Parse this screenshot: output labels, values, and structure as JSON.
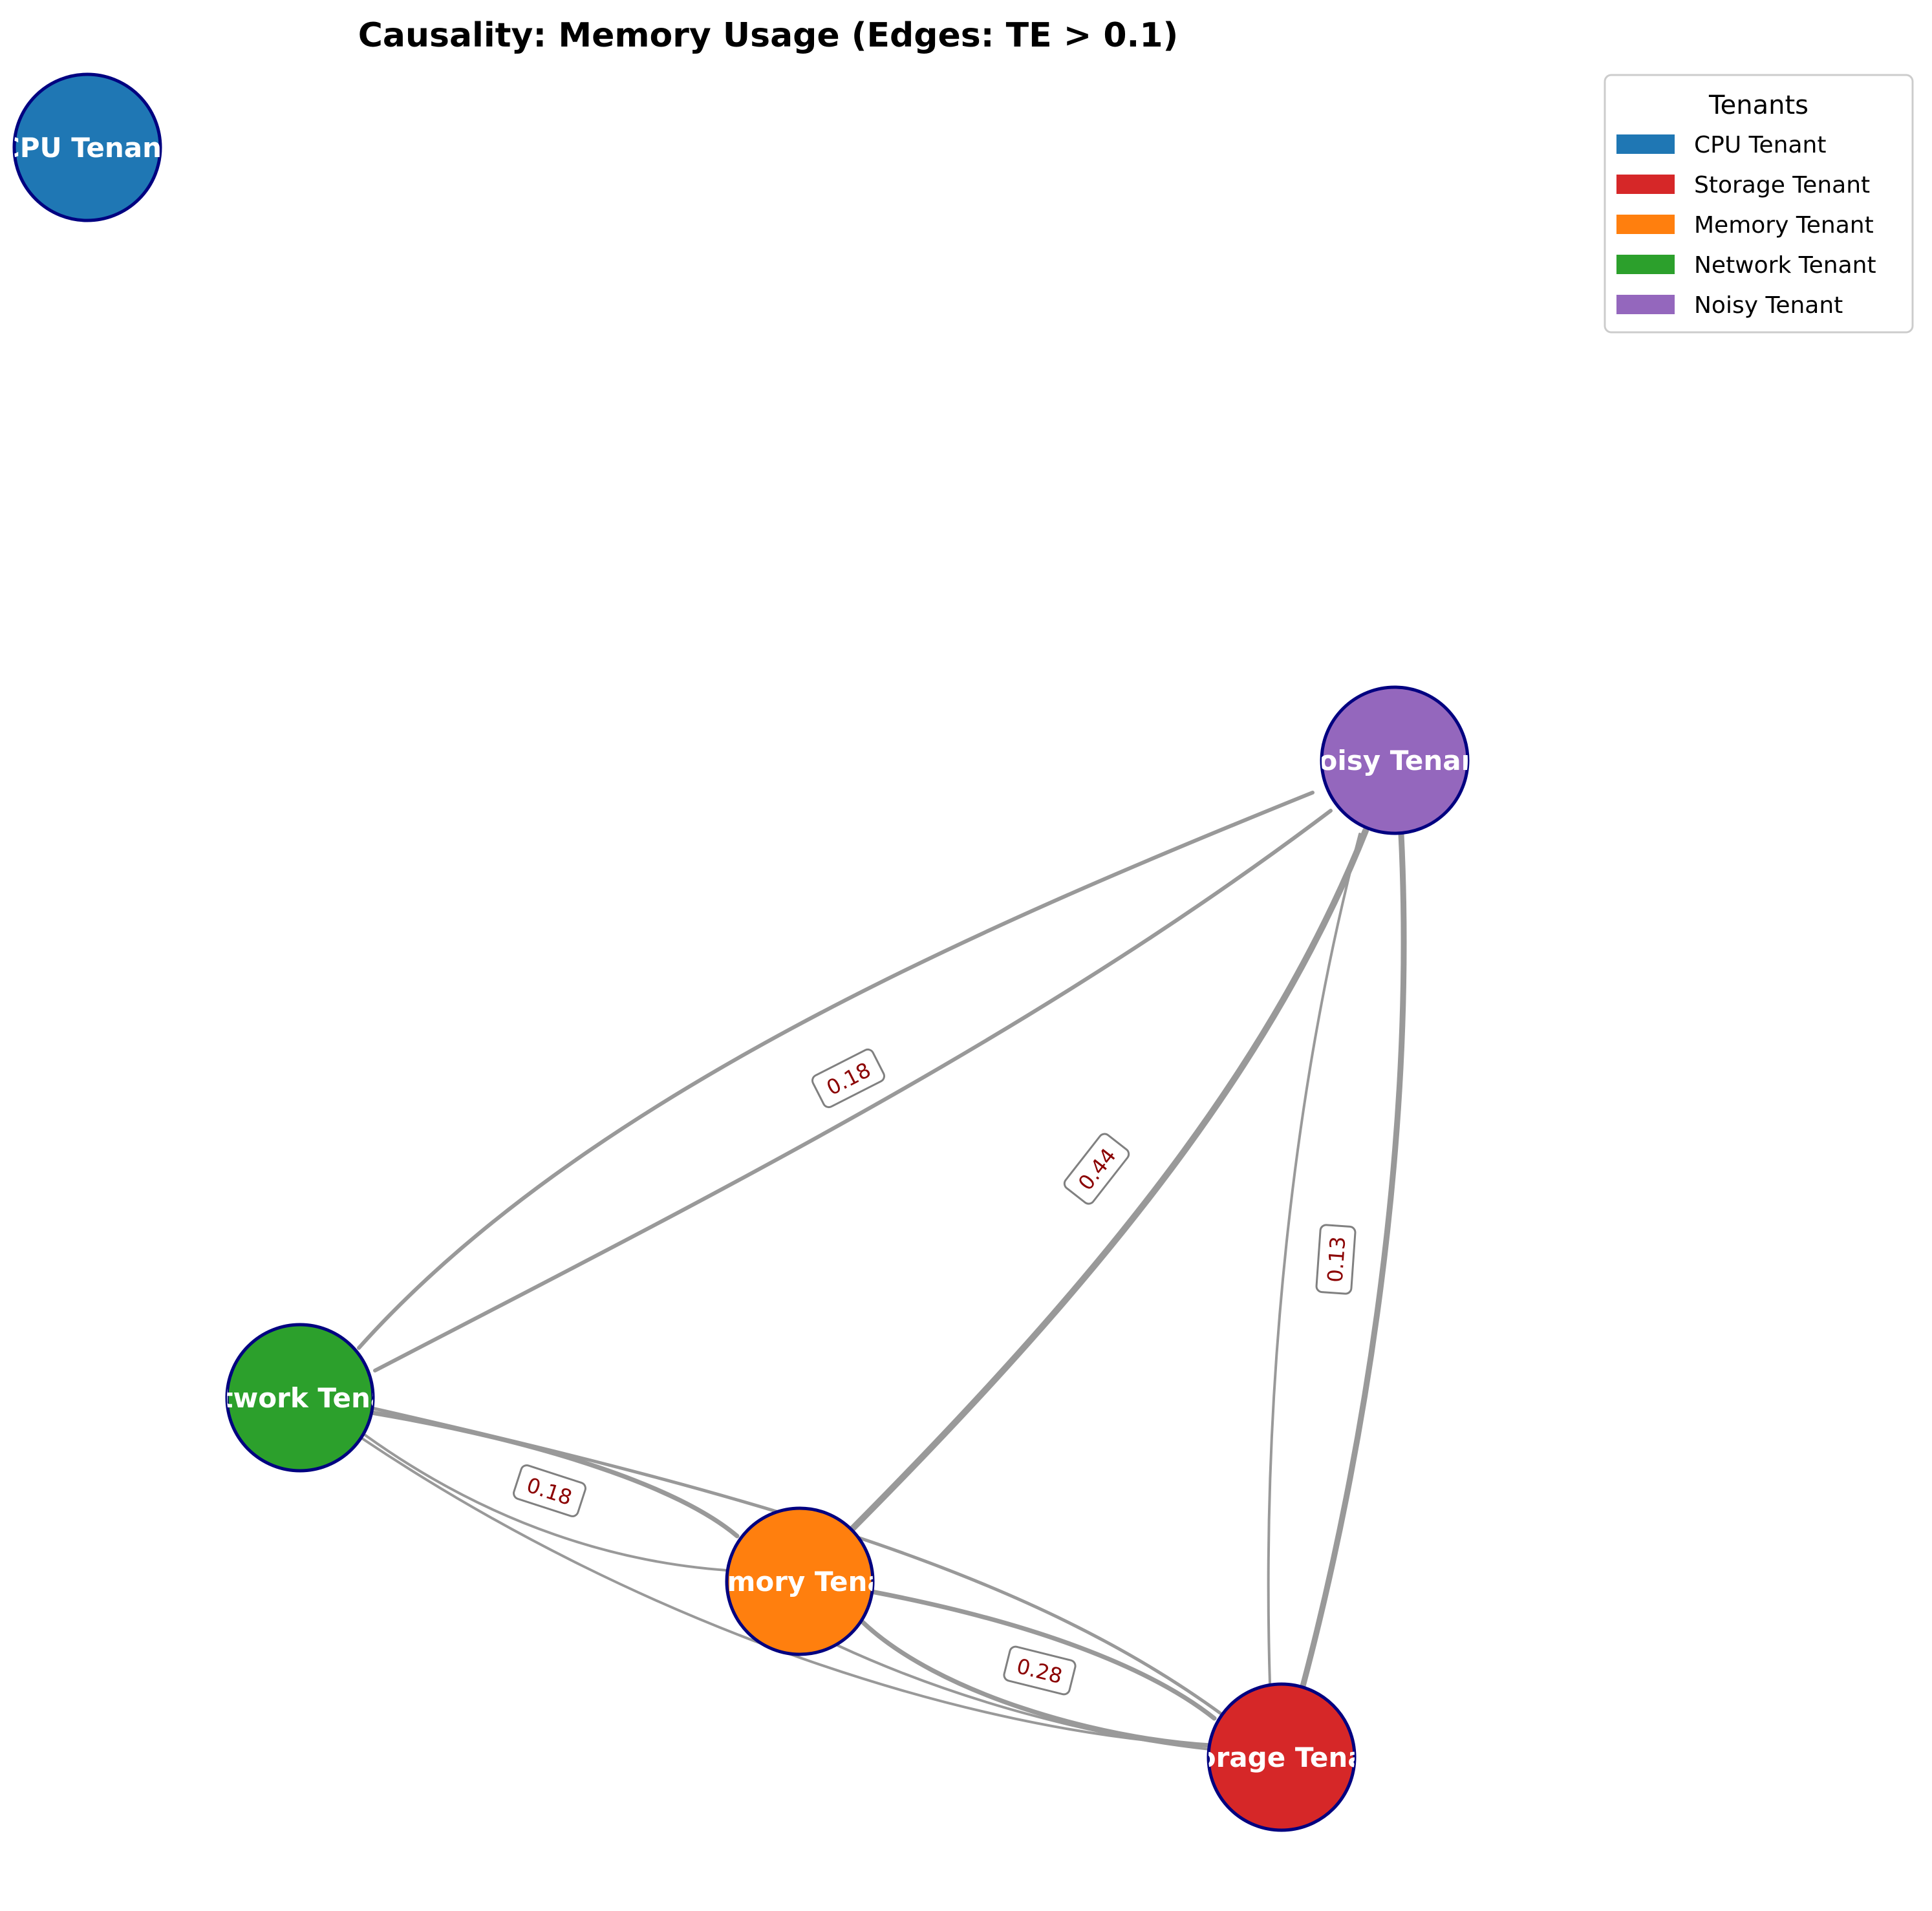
{
  "title": "Causality: Memory Usage (Edges: TE > 0.1)",
  "legend": {
    "title": "Tenants",
    "items": [
      {
        "label": "CPU Tenant",
        "color": "#1f77b4"
      },
      {
        "label": "Storage Tenant",
        "color": "#d62728"
      },
      {
        "label": "Memory Tenant",
        "color": "#ff7f0e"
      },
      {
        "label": "Network Tenant",
        "color": "#2ca02c"
      },
      {
        "label": "Noisy Tenant",
        "color": "#9467bd"
      }
    ]
  },
  "nodes": {
    "cpu": {
      "label": "CPU Tenant",
      "color": "#1f77b4"
    },
    "noisy": {
      "label": "Noisy Tenant",
      "color": "#9467bd"
    },
    "network": {
      "label": "Network Tenant",
      "color": "#2ca02c"
    },
    "memory": {
      "label": "Memory Tenant",
      "color": "#ff7f0e"
    },
    "storage": {
      "label": "Storage Tenant",
      "color": "#d62728"
    }
  },
  "edge_labels": {
    "noisy_network": "0.18",
    "noisy_memory": "0.44",
    "noisy_storage": "0.13",
    "network_memory": "0.18",
    "memory_storage": "0.28"
  },
  "colors": {
    "edge": "#999999",
    "node_outline": "#000080",
    "label_text": "#8b0000"
  }
}
